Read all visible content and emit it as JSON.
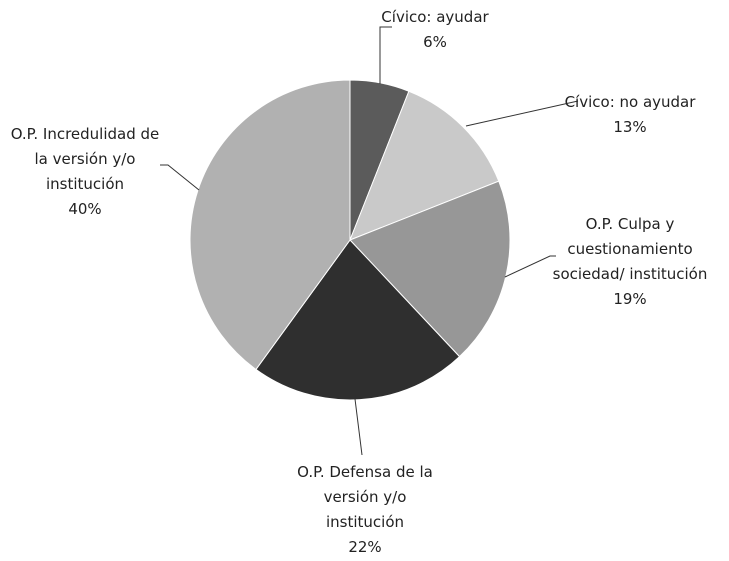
{
  "chart_data": {
    "type": "pie",
    "categories": [
      "Cívico: ayudar",
      "Cívico: no ayudar",
      "O.P. Culpa y cuestionamiento sociedad/ institución",
      "O.P. Defensa de la versión y/o institución",
      "O.P. Incredulidad de la versión y/o institución"
    ],
    "values": [
      6,
      13,
      19,
      22,
      40
    ],
    "value_labels": [
      "6%",
      "13%",
      "19%",
      "22%",
      "40%"
    ],
    "colors": [
      "#5b5b5b",
      "#c9c9c9",
      "#979797",
      "#2f2f2f",
      "#b1b1b1"
    ]
  }
}
